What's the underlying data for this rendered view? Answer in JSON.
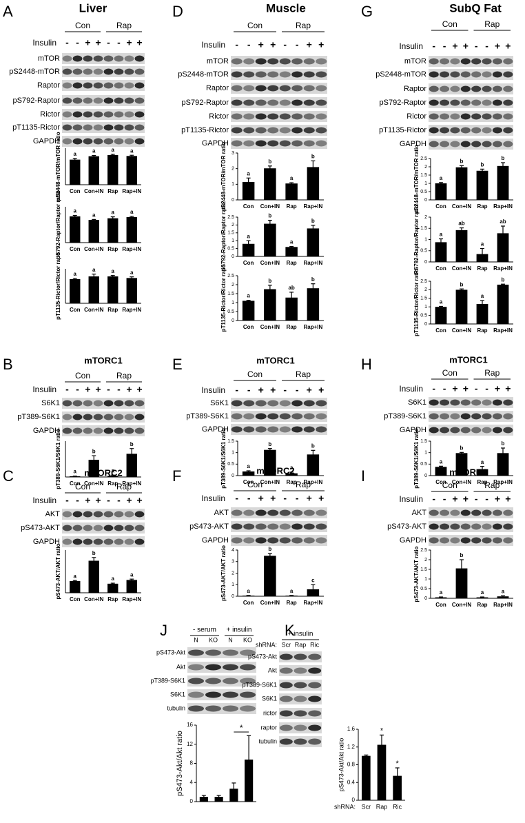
{
  "panels": [
    {
      "letter": "A",
      "title": "Liver",
      "groups": [
        "Con",
        "Rap"
      ],
      "treatment": "Insulin",
      "signs": [
        "-",
        "-",
        "+",
        "+",
        "-",
        "-",
        "+",
        "+"
      ],
      "rows": [
        "mTOR",
        "pS2448-mTOR",
        "Raptor",
        "pS792-Raptor",
        "Rictor",
        "pT1135-Rictor",
        "GAPDH"
      ]
    },
    {
      "letter": "D",
      "title": "Muscle",
      "groups": [
        "Con",
        "Rap"
      ],
      "treatment": "Insulin",
      "signs": [
        "-",
        "-",
        "+",
        "+",
        "-",
        "-",
        "+",
        "+"
      ],
      "rows": [
        "mTOR",
        "pS2448-mTOR",
        "Raptor",
        "pS792-Raptor",
        "Rictor",
        "pT1135-Rictor",
        "GAPDH"
      ]
    },
    {
      "letter": "G",
      "title": "SubQ Fat",
      "groups": [
        "Con",
        "Rap"
      ],
      "treatment": "Insulin",
      "signs": [
        "-",
        "-",
        "+",
        "+",
        "-",
        "-",
        "+",
        "+"
      ],
      "rows": [
        "mTOR",
        "pS2448-mTOR",
        "Raptor",
        "pS792-Raptor",
        "Rictor",
        "pT1135-Rictor",
        "GAPDH"
      ]
    },
    {
      "letter": "B",
      "title": "mTORC1",
      "groups": [
        "Con",
        "Rap"
      ],
      "treatment": "Insulin",
      "signs": [
        "-",
        "-",
        "+",
        "+",
        "-",
        "-",
        "+",
        "+"
      ],
      "rows": [
        "S6K1",
        "pT389-S6K1",
        "GAPDH"
      ]
    },
    {
      "letter": "E",
      "title": "mTORC1",
      "groups": [
        "Con",
        "Rap"
      ],
      "treatment": "Insulin",
      "signs": [
        "-",
        "-",
        "+",
        "+",
        "-",
        "-",
        "+",
        "+"
      ],
      "rows": [
        "S6K1",
        "pT389-S6K1",
        "GAPDH"
      ]
    },
    {
      "letter": "H",
      "title": "mTORC1",
      "groups": [
        "Con",
        "Rap"
      ],
      "treatment": "Insulin",
      "signs": [
        "-",
        "-",
        "+",
        "+",
        "-",
        "-",
        "+",
        "+"
      ],
      "rows": [
        "S6K1",
        "pT389-S6K1",
        "GAPDH"
      ]
    },
    {
      "letter": "C",
      "title": "mTORC2",
      "groups": [
        "Con",
        "Rap"
      ],
      "treatment": "Insulin",
      "signs": [
        "-",
        "-",
        "+",
        "+",
        "-",
        "-",
        "+",
        "+"
      ],
      "rows": [
        "AKT",
        "pS473-AKT",
        "GAPDH"
      ]
    },
    {
      "letter": "F",
      "title": "mTORC2",
      "groups": [
        "Con",
        "Rap"
      ],
      "treatment": "Insulin",
      "signs": [
        "-",
        "-",
        "+",
        "+",
        "-",
        "-",
        "+",
        "+"
      ],
      "rows": [
        "AKT",
        "pS473-AKT",
        "GAPDH"
      ]
    },
    {
      "letter": "I",
      "title": "mTORC2",
      "groups": [
        "Con",
        "Rap"
      ],
      "treatment": "Insulin",
      "signs": [
        "-",
        "-",
        "+",
        "+",
        "-",
        "-",
        "+",
        "+"
      ],
      "rows": [
        "AKT",
        "pS473-AKT",
        "GAPDH"
      ]
    },
    {
      "letter": "J",
      "groups": [
        "- serum",
        "+ insulin"
      ],
      "lanes": [
        "N",
        "KO",
        "N",
        "KO"
      ],
      "rows": [
        "pS473-Akt",
        "Akt",
        "pT389-S6K1",
        "S6K1",
        "tubulin"
      ]
    },
    {
      "letter": "K",
      "groups": [
        "+ insulin"
      ],
      "lane_label": "shRNA:",
      "lanes": [
        "Scr",
        "Rap",
        "Ric"
      ],
      "rows": [
        "pS473-Akt",
        "Akt",
        "pT389-S6K1",
        "S6K1",
        "rictor",
        "raptor",
        "tubulin"
      ]
    }
  ],
  "chart_data": [
    {
      "type": "bar",
      "ylabel": "pS2448-mTOR/mTOR ratio",
      "categories": [
        "Con",
        "Con+IN",
        "Rap",
        "Rap+IN"
      ],
      "values": [
        1.03,
        1.17,
        1.22,
        1.18
      ],
      "errors": [
        0.05,
        0.03,
        0.03,
        0.03
      ],
      "letters": [
        "a",
        "a",
        "a",
        "a"
      ],
      "ylim": [
        0,
        1.5
      ],
      "color": "#000000"
    },
    {
      "type": "bar",
      "ylabel": "pS792-Raptor/Raptor ratio",
      "categories": [
        "Con",
        "Con+IN",
        "Rap",
        "Rap+IN"
      ],
      "values": [
        1.1,
        0.95,
        1.02,
        1.07
      ],
      "errors": [
        0.04,
        0.02,
        0.06,
        0.03
      ],
      "letters": [
        "a",
        "a",
        "a",
        "a"
      ],
      "ylim": [
        0,
        1.5
      ],
      "color": "#000000"
    },
    {
      "type": "bar",
      "ylabel": "pT1135-Rictor/Rictor ratio",
      "categories": [
        "Con",
        "Con+IN",
        "Rap",
        "Rap+IN"
      ],
      "values": [
        1.05,
        1.17,
        1.17,
        1.1
      ],
      "errors": [
        0.03,
        0.1,
        0.04,
        0.05
      ],
      "letters": [
        "a",
        "a",
        "a",
        "a"
      ],
      "ylim": [
        0,
        1.5
      ],
      "color": "#000000"
    },
    {
      "type": "bar",
      "ylabel": "pS2448-mTOR/mTOR ratio",
      "categories": [
        "Con",
        "Con+IN",
        "Rap",
        "Rap+IN"
      ],
      "values": [
        1.15,
        2.02,
        1.05,
        2.1
      ],
      "errors": [
        0.25,
        0.15,
        0.05,
        0.4
      ],
      "letters": [
        "a",
        "b",
        "a",
        "b"
      ],
      "ylim": [
        0,
        3
      ],
      "yticks": [
        0,
        1,
        2,
        3
      ],
      "color": "#000000"
    },
    {
      "type": "bar",
      "ylabel": "pS792-Raptor/Raptor ratio",
      "categories": [
        "Con",
        "Con+IN",
        "Rap",
        "Rap+IN"
      ],
      "values": [
        0.8,
        2.08,
        0.6,
        1.78
      ],
      "errors": [
        0.2,
        0.22,
        0.03,
        0.2
      ],
      "letters": [
        "a",
        "b",
        "a",
        "b"
      ],
      "ylim": [
        0,
        2.5
      ],
      "yticks": [
        0,
        0.5,
        1,
        1.5,
        2,
        2.5
      ],
      "color": "#000000"
    },
    {
      "type": "bar",
      "ylabel": "pT1135-Rictor/Rictor ratio",
      "categories": [
        "Con",
        "Con+IN",
        "Rap",
        "Rap+IN"
      ],
      "values": [
        1.1,
        1.75,
        1.28,
        1.8
      ],
      "errors": [
        0.03,
        0.22,
        0.3,
        0.25
      ],
      "letters": [
        "a",
        "b",
        "ab",
        "b"
      ],
      "ylim": [
        0,
        2.5
      ],
      "yticks": [
        0,
        0.5,
        1,
        1.5,
        2,
        2.5
      ],
      "color": "#000000"
    },
    {
      "type": "bar",
      "ylabel": "pS2448-mTOR/mTOR ratio",
      "categories": [
        "Con",
        "Con+IN",
        "Rap",
        "Rap+IN"
      ],
      "values": [
        1.0,
        1.97,
        1.76,
        2.05
      ],
      "errors": [
        0.05,
        0.1,
        0.1,
        0.2
      ],
      "letters": [
        "a",
        "b",
        "b",
        "b"
      ],
      "ylim": [
        0,
        2.5
      ],
      "yticks": [
        0,
        0.5,
        1,
        1.5,
        2,
        2.5
      ],
      "color": "#000000"
    },
    {
      "type": "bar",
      "ylabel": "PS792-Raptor/Raptor ratio",
      "categories": [
        "Con",
        "Con+IN",
        "Rap",
        "Rap+IN"
      ],
      "values": [
        0.88,
        1.42,
        0.35,
        1.28
      ],
      "errors": [
        0.15,
        0.1,
        0.25,
        0.32
      ],
      "letters": [
        "a",
        "ab",
        "a",
        "ab"
      ],
      "ylim": [
        0,
        2
      ],
      "yticks": [
        0,
        0.5,
        1,
        1.5,
        2
      ],
      "color": "#000000"
    },
    {
      "type": "bar",
      "ylabel": "pT1135-Rictor/Rictor ratio",
      "categories": [
        "Con",
        "Con+IN",
        "Rap",
        "Rap+IN"
      ],
      "values": [
        1.0,
        2.0,
        1.17,
        2.3
      ],
      "errors": [
        0.03,
        0.05,
        0.2,
        0.03
      ],
      "letters": [
        "a",
        "b",
        "a",
        "b"
      ],
      "ylim": [
        0,
        2.5
      ],
      "yticks": [
        0,
        0.5,
        1,
        1.5,
        2,
        2.5
      ],
      "color": "#000000"
    },
    {
      "type": "bar",
      "ylabel": "pT389-S6K1/S6K1 ratio",
      "categories": [
        "Con",
        "Con+IN",
        "Rap",
        "Rap+IN"
      ],
      "values": [
        0.03,
        0.72,
        0.05,
        0.97
      ],
      "errors": [
        0.01,
        0.17,
        0.03,
        0.22
      ],
      "letters": [
        "a",
        "b",
        "a",
        "b"
      ],
      "ylim": [
        0,
        1.5
      ],
      "color": "#000000"
    },
    {
      "type": "bar",
      "ylabel": "pT389-S6K1/S6K1 ratio",
      "categories": [
        "Con",
        "Con+IN",
        "Rap",
        "Rap+IN"
      ],
      "values": [
        0.18,
        1.12,
        0.1,
        0.92
      ],
      "errors": [
        0.03,
        0.06,
        0.05,
        0.18
      ],
      "letters": [
        "a",
        "b",
        "a",
        "b"
      ],
      "ylim": [
        0,
        1.5
      ],
      "yticks": [
        0,
        0.5,
        1,
        1.5
      ],
      "color": "#000000"
    },
    {
      "type": "bar",
      "ylabel": "pT389-S6K1/S6K1 ratio",
      "categories": [
        "Con",
        "Con+IN",
        "Rap",
        "Rap+IN"
      ],
      "values": [
        0.38,
        0.98,
        0.28,
        0.98
      ],
      "errors": [
        0.03,
        0.03,
        0.12,
        0.22
      ],
      "letters": [
        "a",
        "b",
        "a",
        "b"
      ],
      "ylim": [
        0,
        1.5
      ],
      "yticks": [
        0,
        0.5,
        1,
        1.5
      ],
      "color": "#000000"
    },
    {
      "type": "bar",
      "ylabel": "pS473-AKT/AKT ratio",
      "categories": [
        "Con",
        "Con+IN",
        "Rap",
        "Rap+IN"
      ],
      "values": [
        1.1,
        3.0,
        0.85,
        1.2
      ],
      "errors": [
        0.05,
        0.3,
        0.05,
        0.08
      ],
      "letters": [
        "a",
        "b",
        "a",
        "a"
      ],
      "ylim": [
        0,
        4
      ],
      "color": "#000000"
    },
    {
      "type": "bar",
      "ylabel": "pS473-AKT/AKT ratio",
      "categories": [
        "Con",
        "Con+IN",
        "Rap",
        "Rap+IN"
      ],
      "values": [
        0.05,
        3.5,
        0.05,
        0.6
      ],
      "errors": [
        0.02,
        0.2,
        0.02,
        0.4
      ],
      "letters": [
        "a",
        "b",
        "a",
        "c"
      ],
      "ylim": [
        0,
        4
      ],
      "yticks": [
        0,
        1,
        2,
        3,
        4
      ],
      "color": "#000000"
    },
    {
      "type": "bar",
      "ylabel": "pS473-AKT/AKT ratio",
      "categories": [
        "Con",
        "Con+IN",
        "Rap",
        "Rap+IN"
      ],
      "values": [
        0.05,
        1.55,
        0.05,
        0.1
      ],
      "errors": [
        0.02,
        0.45,
        0.02,
        0.03
      ],
      "letters": [
        "a",
        "b",
        "a",
        "a"
      ],
      "ylim": [
        0,
        2.5
      ],
      "yticks": [
        0,
        0.5,
        1,
        1.5,
        2,
        2.5
      ],
      "color": "#000000"
    },
    {
      "type": "bar",
      "ylabel": "pS473-Akt/Akt ratio",
      "categories": [
        null,
        null,
        null,
        null
      ],
      "values": [
        1.0,
        1.0,
        2.7,
        8.8
      ],
      "errors": [
        0.3,
        0.3,
        1.2,
        5.0
      ],
      "annotation": "*",
      "ylim": [
        0,
        16
      ],
      "yticks": [
        0,
        4,
        8,
        12,
        16
      ],
      "color": "#000000"
    },
    {
      "type": "bar",
      "ylabel": "pS473-Akt/Akt ratio",
      "xlabel": "shRNA:",
      "categories": [
        "Scr",
        "Rap",
        "Ric"
      ],
      "values": [
        1.0,
        1.25,
        0.55
      ],
      "errors": [
        0.02,
        0.22,
        0.18
      ],
      "letters": [
        null,
        "*",
        "*"
      ],
      "ylim": [
        0,
        1.6
      ],
      "yticks": [
        0,
        0.4,
        0.8,
        1.2,
        1.6
      ],
      "color": "#000000"
    }
  ]
}
